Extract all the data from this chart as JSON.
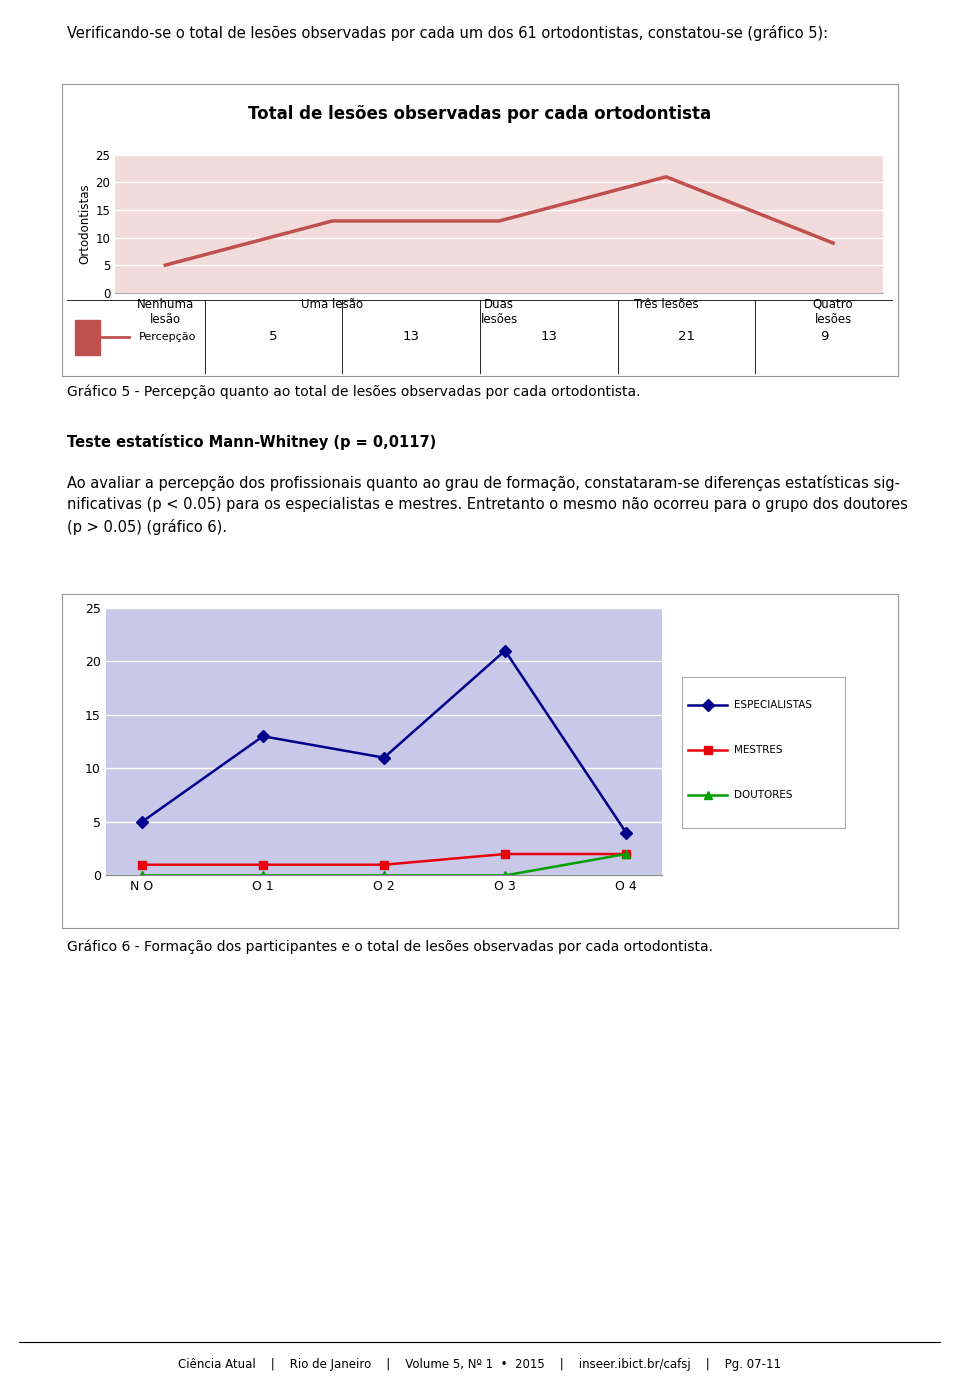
{
  "page_title": "Verificando-se o total de lesões observadas por cada um dos 61 ortodontistas, constatou-se (gráfico 5):",
  "chart1": {
    "title": "Total de lesões observadas por cada ortodontista",
    "categories": [
      "Nenhuma\nlesão",
      "Uma lesão",
      "Duas\nlesões",
      "Três lesões",
      "Quatro\nlesões"
    ],
    "series": [
      {
        "name": "Percepção",
        "values": [
          5,
          13,
          13,
          21,
          9
        ],
        "color": "#c0504d",
        "marker": "s"
      }
    ],
    "ylabel": "Ortodontistas",
    "ylim": [
      0,
      25
    ],
    "yticks": [
      0,
      5,
      10,
      15,
      20,
      25
    ],
    "bg_color": "#f2dcdb",
    "title_bg": "#e8d0ce",
    "table_row": [
      "5",
      "13",
      "13",
      "21",
      "9"
    ]
  },
  "caption1": "Gráfico 5 - Percepção quanto ao total de lesões observadas por cada ortodontista.",
  "stat_title": "Teste estatístico Mann-Whitney (p = 0,0117)",
  "body_text": "Ao avaliar a percepção dos profissionais quanto ao grau de formação, constataram-se diferenças estatísticas sig-\nnificativas (p < 0.05) para os especialistas e mestres. Entretanto o mesmo não ocorreu para o grupo dos doutores\n(p > 0.05) (gráfico 6).",
  "chart2": {
    "categories": [
      "N O",
      "O 1",
      "O 2",
      "O 3",
      "O 4"
    ],
    "series": [
      {
        "name": "ESPECIALISTAS",
        "values": [
          5,
          13,
          11,
          21,
          4
        ],
        "color": "#00008b",
        "marker": "D"
      },
      {
        "name": "MESTRES",
        "values": [
          1,
          1,
          1,
          2,
          2
        ],
        "color": "#e8000d",
        "marker": "s"
      },
      {
        "name": "DOUTORES",
        "values": [
          0,
          0,
          0,
          0,
          2
        ],
        "color": "#00a000",
        "marker": "^"
      }
    ],
    "ylim": [
      0,
      25
    ],
    "yticks": [
      0,
      5,
      10,
      15,
      20,
      25
    ],
    "bg_color": "#c8c8e8"
  },
  "caption2": "Gráfico 6 - Formação dos participantes e o total de lesões observadas por cada ortodontista.",
  "footer": "Ciência Atual    |    Rio de Janeiro    |    Volume 5, Nº 1  •  2015    |    inseer.ibict.br/cafsj    |    Pg. 07-11",
  "page_bg": "#ffffff",
  "outer_box_color": "#999999",
  "chart_border_color": "#cccccc"
}
